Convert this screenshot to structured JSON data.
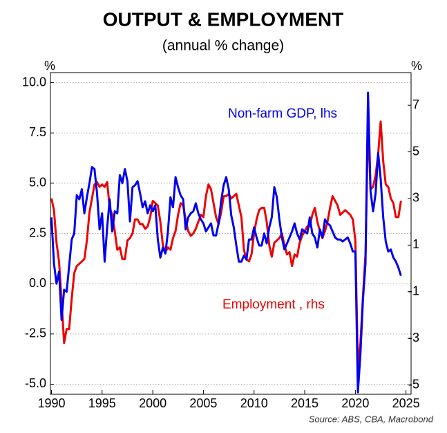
{
  "chart_data": {
    "type": "line",
    "title": "OUTPUT & EMPLOYMENT",
    "subtitle": "(annual % change)",
    "ylabel": "%",
    "y2label": "%",
    "source": "Source: ABS, CBA, Macrobond",
    "x": [
      1990,
      1990.25,
      1990.5,
      1990.75,
      1991,
      1991.25,
      1991.5,
      1991.75,
      1992,
      1992.25,
      1992.5,
      1992.75,
      1993,
      1993.25,
      1993.5,
      1993.75,
      1994,
      1994.25,
      1994.5,
      1994.75,
      1995,
      1995.25,
      1995.5,
      1995.75,
      1996,
      1996.25,
      1996.5,
      1996.75,
      1997,
      1997.25,
      1997.5,
      1997.75,
      1998,
      1998.25,
      1998.5,
      1998.75,
      1999,
      1999.25,
      1999.5,
      1999.75,
      2000,
      2000.25,
      2000.5,
      2000.75,
      2001,
      2001.25,
      2001.5,
      2001.75,
      2002,
      2002.25,
      2002.5,
      2002.75,
      2003,
      2003.25,
      2003.5,
      2003.75,
      2004,
      2004.25,
      2004.5,
      2004.75,
      2005,
      2005.25,
      2005.5,
      2005.75,
      2006,
      2006.25,
      2006.5,
      2006.75,
      2007,
      2007.25,
      2007.5,
      2007.75,
      2008,
      2008.25,
      2008.5,
      2008.75,
      2009,
      2009.25,
      2009.5,
      2009.75,
      2010,
      2010.25,
      2010.5,
      2010.75,
      2011,
      2011.25,
      2011.5,
      2011.75,
      2012,
      2012.25,
      2012.5,
      2012.75,
      2013,
      2013.25,
      2013.5,
      2013.75,
      2014,
      2014.25,
      2014.5,
      2014.75,
      2015,
      2015.25,
      2015.5,
      2015.75,
      2016,
      2016.25,
      2016.5,
      2016.75,
      2017,
      2017.25,
      2017.5,
      2017.75,
      2018,
      2018.25,
      2018.5,
      2018.75,
      2019,
      2019.25,
      2019.5,
      2019.75,
      2020,
      2020.25,
      2020.5,
      2020.75,
      2021,
      2021.25,
      2021.5,
      2021.75,
      2022,
      2022.25,
      2022.5,
      2022.75,
      2023,
      2023.25,
      2023.5,
      2023.75,
      2024,
      2024.25,
      2024.5
    ],
    "series": [
      {
        "name": "Non-farm GDP, lhs",
        "color": "#0000ee",
        "axis": "y",
        "values": [
          3.3,
          1.0,
          0.0,
          0.6,
          -1.8,
          -0.3,
          -0.4,
          0.9,
          2.2,
          2.5,
          4.4,
          4.2,
          4.7,
          3.5,
          4.3,
          5.0,
          5.8,
          5.7,
          4.5,
          2.7,
          3.5,
          1.1,
          2.8,
          4.2,
          2.6,
          3.6,
          3.5,
          5.4,
          5.0,
          5.7,
          5.1,
          3.1,
          4.8,
          4.9,
          5.1,
          4.5,
          3.8,
          4.1,
          3.5,
          3.9,
          3.6,
          3.9,
          2.2,
          1.3,
          1.8,
          1.5,
          2.6,
          4.3,
          3.8,
          5.3,
          4.8,
          4.4,
          4.2,
          2.7,
          3.3,
          3.5,
          3.6,
          4.0,
          3.5,
          3.2,
          3.0,
          2.6,
          2.8,
          3.0,
          2.4,
          2.4,
          3.0,
          4.1,
          4.9,
          5.3,
          4.7,
          3.4,
          2.8,
          1.9,
          1.1,
          1.1,
          1.4,
          1.2,
          2.2,
          2.2,
          2.8,
          2.3,
          1.9,
          1.9,
          2.5,
          2.0,
          2.8,
          3.3,
          4.8,
          4.3,
          3.2,
          2.3,
          1.7,
          2.0,
          2.3,
          2.6,
          3.0,
          2.5,
          2.2,
          2.7,
          2.6,
          2.5,
          3.3,
          2.5,
          2.3,
          1.8,
          2.7,
          2.3,
          3.2,
          3.0,
          2.9,
          2.6,
          2.3,
          2.2,
          2.2,
          2.1,
          2.2,
          2.3,
          2.0,
          1.6,
          1.6,
          -5.4,
          -3.5,
          -0.8,
          1.0,
          9.5,
          4.6,
          3.6,
          4.5,
          6.5,
          5.2,
          3.3,
          2.1,
          1.6,
          1.7,
          1.3,
          1.1,
          0.8,
          0.4
        ]
      },
      {
        "name": "Employment , rhs",
        "color": "#ee0000",
        "axis": "y2",
        "values": [
          3.0,
          2.5,
          1.1,
          0.3,
          -1.4,
          -3.2,
          -2.6,
          -2.6,
          -1.3,
          -0.2,
          0.1,
          0.2,
          0.3,
          0.4,
          1.2,
          2.4,
          3.0,
          3.6,
          3.7,
          3.5,
          3.6,
          3.5,
          3.7,
          2.6,
          2.3,
          1.6,
          0.8,
          0.9,
          0.4,
          0.4,
          1.2,
          1.3,
          1.5,
          2.1,
          2.1,
          1.9,
          1.9,
          1.7,
          1.8,
          2.2,
          2.9,
          2.8,
          2.7,
          2.0,
          1.0,
          0.7,
          0.9,
          0.8,
          1.3,
          1.6,
          2.3,
          2.8,
          2.7,
          2.1,
          1.6,
          1.4,
          1.5,
          1.7,
          2.0,
          2.3,
          2.2,
          3.1,
          3.6,
          3.4,
          2.8,
          2.2,
          1.9,
          2.4,
          3.1,
          3.1,
          3.2,
          3.0,
          3.1,
          3.2,
          2.7,
          2.2,
          0.8,
          0.4,
          0.3,
          0.6,
          1.5,
          2.1,
          2.5,
          2.6,
          2.6,
          2.0,
          1.0,
          0.5,
          1.1,
          1.2,
          1.3,
          1.5,
          1.0,
          0.6,
          0.7,
          0.1,
          0.6,
          0.5,
          1.1,
          1.4,
          1.6,
          1.8,
          1.8,
          2.3,
          2.6,
          2.0,
          1.6,
          1.3,
          1.6,
          2.0,
          2.6,
          3.1,
          2.9,
          2.7,
          2.3,
          2.4,
          2.5,
          2.4,
          2.3,
          2.1,
          1.2,
          -4.2,
          -3.2,
          -1.2,
          0.6,
          6.2,
          3.4,
          3.5,
          4.0,
          4.9,
          6.3,
          4.6,
          3.6,
          3.5,
          3.0,
          2.8,
          2.2,
          2.2,
          2.9
        ]
      }
    ],
    "xlim": [
      1989.9,
      2025.5
    ],
    "xticks": [
      1990,
      1995,
      2000,
      2005,
      2010,
      2015,
      2020,
      2025
    ],
    "ylim": [
      -5.5,
      10.5
    ],
    "yticks": [
      {
        "value": 10,
        "label": "10.0"
      },
      {
        "value": 7.5,
        "label": "7.5"
      },
      {
        "value": 5,
        "label": "5.0"
      },
      {
        "value": 2.5,
        "label": "2.5"
      },
      {
        "value": 0,
        "label": "0.0"
      },
      {
        "value": -2.5,
        "label": "-2.5"
      },
      {
        "value": -5,
        "label": "-5.0"
      }
    ],
    "y2lim": [
      -5.4,
      8.4
    ],
    "y2ticks": [
      7,
      5,
      3,
      1,
      -1,
      -3,
      -5
    ],
    "grid": true
  }
}
